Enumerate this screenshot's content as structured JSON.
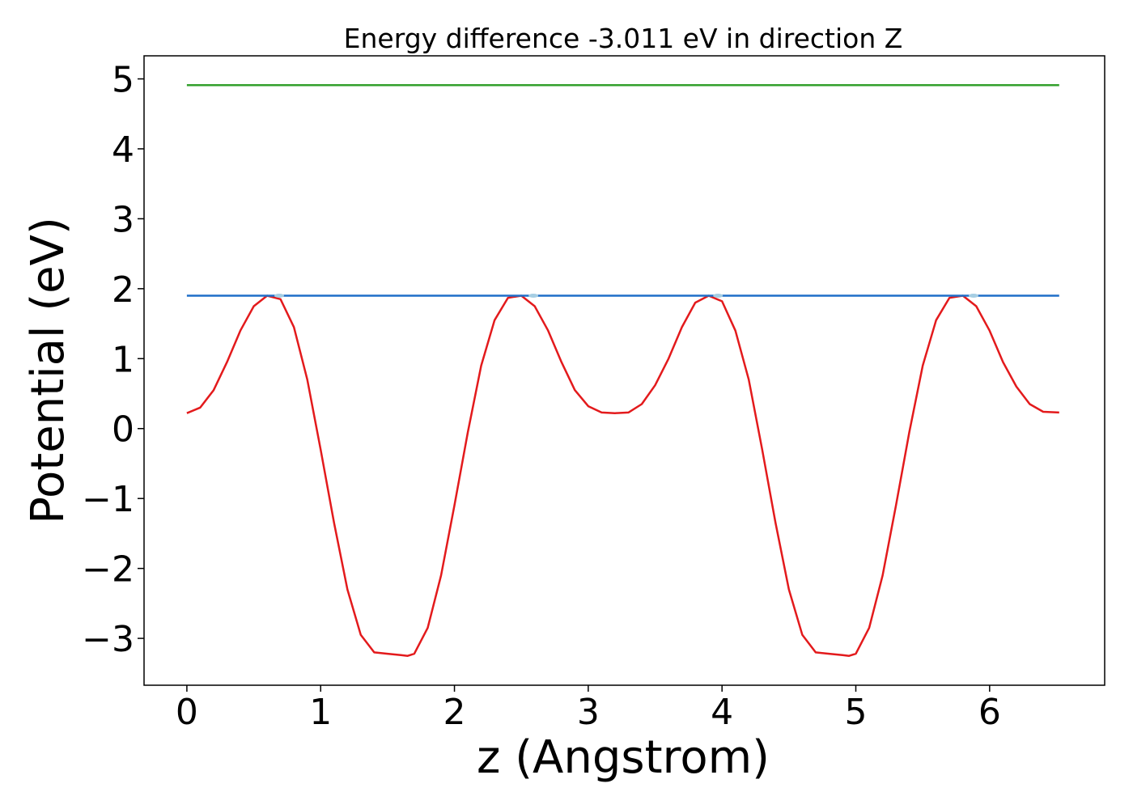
{
  "chart_data": {
    "type": "line",
    "title": "Energy difference -3.011 eV in direction Z",
    "xlabel": "z (Angstrom)",
    "ylabel": "Potential (eV)",
    "xlim": [
      -0.32,
      6.86
    ],
    "ylim": [
      -3.67,
      5.33
    ],
    "xticks": [
      0,
      1,
      2,
      3,
      4,
      5,
      6
    ],
    "xtick_labels": [
      "0",
      "1",
      "2",
      "3",
      "4",
      "5",
      "6"
    ],
    "yticks": [
      5,
      4,
      3,
      2,
      1,
      0,
      -1,
      -2,
      -3
    ],
    "ytick_labels": [
      "5",
      "4",
      "3",
      "2",
      "1",
      "0",
      "−1",
      "−2",
      "−3"
    ],
    "grid": false,
    "series": [
      {
        "color": "#e31a1c",
        "x": [
          0.0,
          0.1,
          0.2,
          0.3,
          0.4,
          0.5,
          0.6,
          0.7,
          0.8,
          0.9,
          1.0,
          1.1,
          1.2,
          1.3,
          1.4,
          1.5,
          1.6,
          1.65,
          1.7,
          1.8,
          1.9,
          2.0,
          2.1,
          2.2,
          2.3,
          2.4,
          2.5,
          2.6,
          2.7,
          2.8,
          2.9,
          3.0,
          3.1,
          3.2,
          3.3,
          3.4,
          3.5,
          3.6,
          3.7,
          3.8,
          3.9,
          4.0,
          4.1,
          4.2,
          4.3,
          4.4,
          4.5,
          4.6,
          4.7,
          4.8,
          4.9,
          4.95,
          5.0,
          5.1,
          5.2,
          5.3,
          5.4,
          5.5,
          5.6,
          5.7,
          5.8,
          5.9,
          6.0,
          6.1,
          6.2,
          6.3,
          6.4,
          6.52
        ],
        "y": [
          0.22,
          0.3,
          0.55,
          0.95,
          1.4,
          1.75,
          1.9,
          1.85,
          1.45,
          0.7,
          -0.3,
          -1.35,
          -2.3,
          -2.95,
          -3.2,
          -3.22,
          -3.24,
          -3.25,
          -3.22,
          -2.85,
          -2.1,
          -1.1,
          -0.05,
          0.9,
          1.55,
          1.87,
          1.9,
          1.75,
          1.4,
          0.95,
          0.55,
          0.32,
          0.23,
          0.22,
          0.23,
          0.35,
          0.62,
          1.0,
          1.45,
          1.8,
          1.9,
          1.82,
          1.4,
          0.7,
          -0.3,
          -1.35,
          -2.3,
          -2.95,
          -3.2,
          -3.22,
          -3.24,
          -3.25,
          -3.22,
          -2.85,
          -2.1,
          -1.1,
          -0.05,
          0.9,
          1.55,
          1.87,
          1.9,
          1.75,
          1.4,
          0.95,
          0.6,
          0.35,
          0.24,
          0.23
        ]
      },
      {
        "color": "#1f6fc9",
        "x": [
          0.0,
          6.52
        ],
        "y": [
          1.9,
          1.9
        ]
      },
      {
        "color": "#33a02c",
        "x": [
          0.0,
          6.52
        ],
        "y": [
          4.91,
          4.91
        ]
      }
    ],
    "markers": {
      "color": "#a6cee3",
      "x": [
        0.69,
        2.59,
        3.97,
        5.88
      ],
      "y": [
        1.9,
        1.9,
        1.9,
        1.9
      ]
    }
  }
}
